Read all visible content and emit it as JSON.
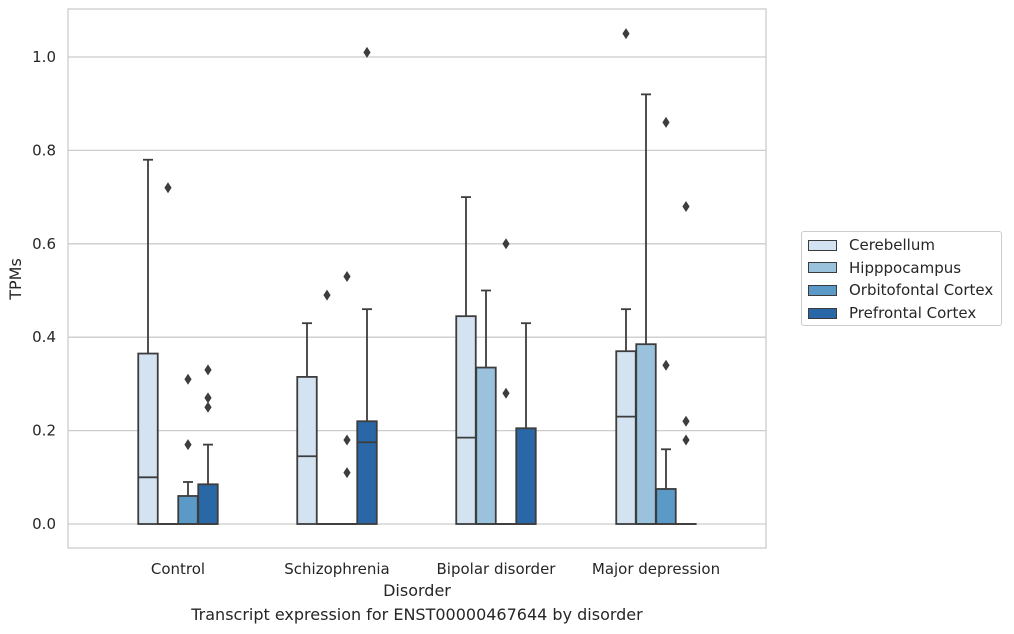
{
  "caption": "Transcript expression for ENST00000467644 by disorder",
  "chart_data": {
    "type": "box",
    "title": "",
    "xlabel": "Disorder",
    "ylabel": "TPMs",
    "ylim": [
      -0.05,
      1.1
    ],
    "yticks": [
      0.0,
      0.2,
      0.4,
      0.6,
      0.8,
      1.0
    ],
    "ytick_labels": [
      "0.0",
      "0.2",
      "0.4",
      "0.6",
      "0.8",
      "1.0"
    ],
    "grid": "horizontal",
    "legend_position": "right",
    "categories": [
      "Control",
      "Schizophrenia",
      "Bipolar disorder",
      "Major depression"
    ],
    "series": [
      {
        "name": "Cerebellum",
        "color": "#d3e3f2",
        "boxes": [
          {
            "q1": 0.0,
            "median": 0.1,
            "q3": 0.365,
            "whisker_low": 0.0,
            "whisker_high": 0.78,
            "outliers": []
          },
          {
            "q1": 0.0,
            "median": 0.145,
            "q3": 0.315,
            "whisker_low": 0.0,
            "whisker_high": 0.43,
            "outliers": []
          },
          {
            "q1": 0.0,
            "median": 0.185,
            "q3": 0.445,
            "whisker_low": 0.0,
            "whisker_high": 0.7,
            "outliers": []
          },
          {
            "q1": 0.0,
            "median": 0.23,
            "q3": 0.37,
            "whisker_low": 0.0,
            "whisker_high": 0.46,
            "outliers": [
              1.05
            ]
          }
        ]
      },
      {
        "name": "Hipppocampus",
        "color": "#9bc2dc",
        "boxes": [
          {
            "q1": 0.0,
            "median": 0.0,
            "q3": 0.0,
            "whisker_low": 0.0,
            "whisker_high": 0.0,
            "outliers": [
              0.72
            ]
          },
          {
            "q1": 0.0,
            "median": 0.0,
            "q3": 0.0,
            "whisker_low": 0.0,
            "whisker_high": 0.0,
            "outliers": [
              0.49
            ]
          },
          {
            "q1": 0.0,
            "median": 0.0,
            "q3": 0.335,
            "whisker_low": 0.0,
            "whisker_high": 0.5,
            "outliers": []
          },
          {
            "q1": 0.0,
            "median": 0.0,
            "q3": 0.385,
            "whisker_low": 0.0,
            "whisker_high": 0.92,
            "outliers": []
          }
        ]
      },
      {
        "name": "Orbitofontal Cortex",
        "color": "#5b9ac7",
        "boxes": [
          {
            "q1": 0.0,
            "median": 0.0,
            "q3": 0.06,
            "whisker_low": 0.0,
            "whisker_high": 0.09,
            "outliers": [
              0.31,
              0.17
            ]
          },
          {
            "q1": 0.0,
            "median": 0.0,
            "q3": 0.0,
            "whisker_low": 0.0,
            "whisker_high": 0.0,
            "outliers": [
              0.53,
              0.18,
              0.11
            ]
          },
          {
            "q1": 0.0,
            "median": 0.0,
            "q3": 0.0,
            "whisker_low": 0.0,
            "whisker_high": 0.0,
            "outliers": [
              0.6,
              0.28
            ]
          },
          {
            "q1": 0.0,
            "median": 0.0,
            "q3": 0.075,
            "whisker_low": 0.0,
            "whisker_high": 0.16,
            "outliers": [
              0.86,
              0.34
            ]
          }
        ]
      },
      {
        "name": "Prefrontal Cortex",
        "color": "#2a67a6",
        "boxes": [
          {
            "q1": 0.0,
            "median": 0.0,
            "q3": 0.085,
            "whisker_low": 0.0,
            "whisker_high": 0.17,
            "outliers": [
              0.33,
              0.27,
              0.25
            ]
          },
          {
            "q1": 0.0,
            "median": 0.175,
            "q3": 0.22,
            "whisker_low": 0.0,
            "whisker_high": 0.46,
            "outliers": [
              1.01
            ]
          },
          {
            "q1": 0.0,
            "median": 0.0,
            "q3": 0.205,
            "whisker_low": 0.0,
            "whisker_high": 0.43,
            "outliers": []
          },
          {
            "q1": 0.0,
            "median": 0.0,
            "q3": 0.0,
            "whisker_low": 0.0,
            "whisker_high": 0.0,
            "outliers": [
              0.68,
              0.22,
              0.18
            ]
          }
        ]
      }
    ]
  }
}
